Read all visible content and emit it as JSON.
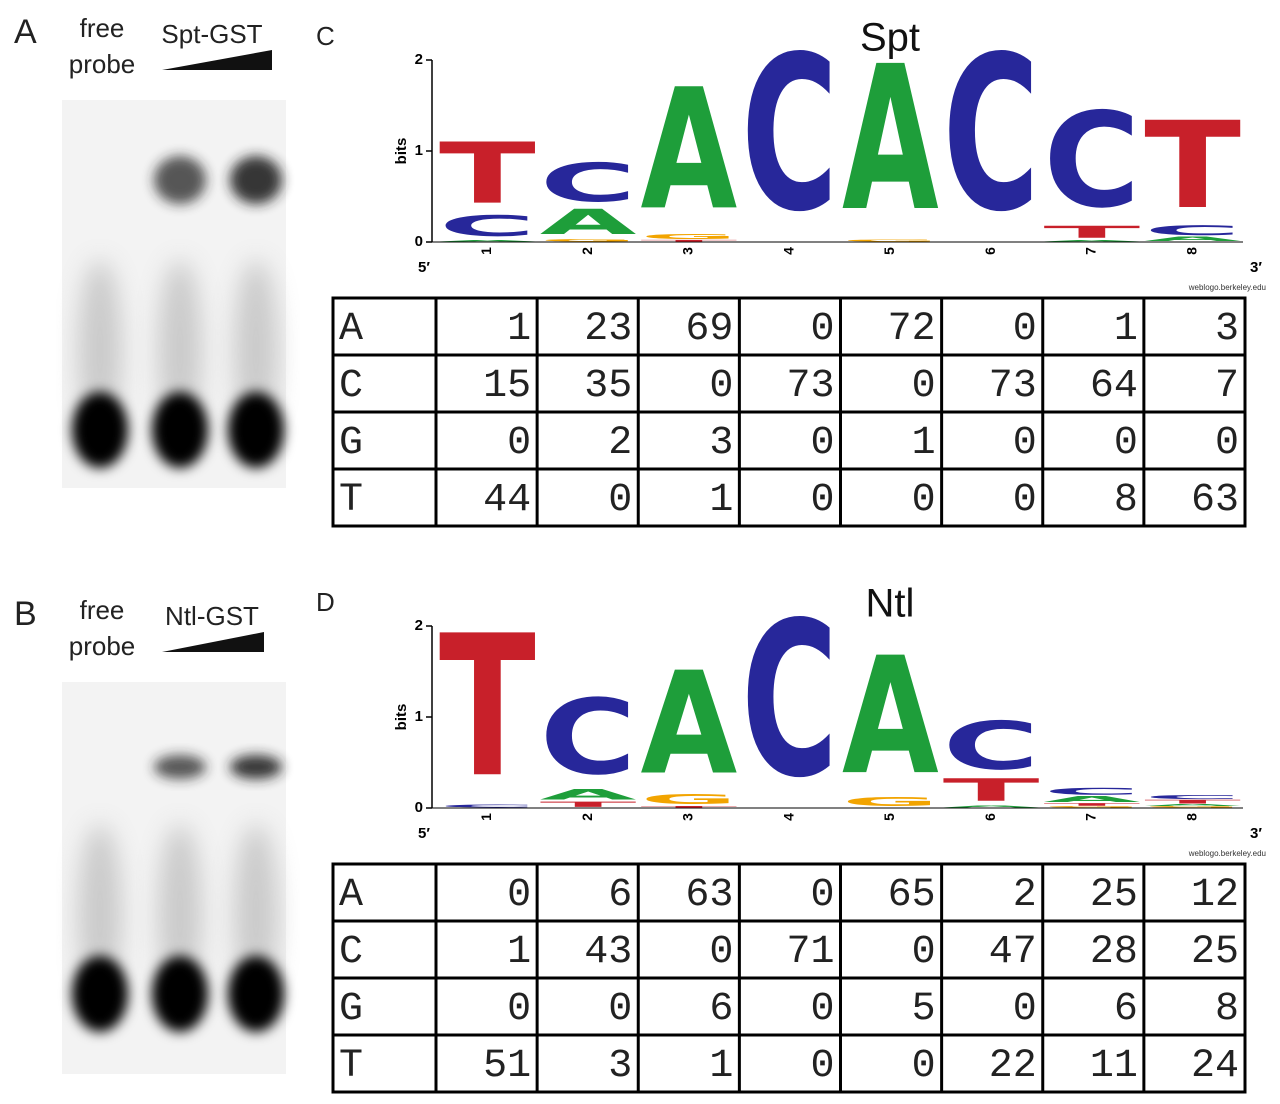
{
  "gels": [
    {
      "label": "A",
      "free_probe": [
        "free",
        "probe"
      ],
      "protein": "Spt-GST"
    },
    {
      "label": "B",
      "free_probe": [
        "free",
        "probe"
      ],
      "protein": "Ntl-GST"
    }
  ],
  "logos": [
    {
      "label": "C",
      "title": "Spt",
      "y_label": "bits",
      "ylim": [
        0,
        2
      ],
      "yticks": [
        0,
        1,
        2
      ],
      "positions": [
        1,
        2,
        3,
        4,
        5,
        6,
        7,
        8
      ],
      "five_prime": "5′",
      "three_prime": "3′",
      "credit": "weblogo.berkeley.edu",
      "table": {
        "rows": [
          {
            "base": "A",
            "counts": [
              1,
              23,
              69,
              0,
              72,
              0,
              1,
              3
            ]
          },
          {
            "base": "C",
            "counts": [
              15,
              35,
              0,
              73,
              0,
              73,
              64,
              7
            ]
          },
          {
            "base": "G",
            "counts": [
              0,
              2,
              3,
              0,
              1,
              0,
              0,
              0
            ]
          },
          {
            "base": "T",
            "counts": [
              44,
              0,
              1,
              0,
              0,
              0,
              8,
              63
            ]
          }
        ]
      }
    },
    {
      "label": "D",
      "title": "Ntl",
      "y_label": "bits",
      "ylim": [
        0,
        2
      ],
      "yticks": [
        0,
        1,
        2
      ],
      "positions": [
        1,
        2,
        3,
        4,
        5,
        6,
        7,
        8
      ],
      "five_prime": "5′",
      "three_prime": "3′",
      "credit": "weblogo.berkeley.edu",
      "table": {
        "rows": [
          {
            "base": "A",
            "counts": [
              0,
              6,
              63,
              0,
              65,
              2,
              25,
              12
            ]
          },
          {
            "base": "C",
            "counts": [
              1,
              43,
              0,
              71,
              0,
              47,
              28,
              25
            ]
          },
          {
            "base": "G",
            "counts": [
              0,
              0,
              6,
              0,
              5,
              0,
              6,
              8
            ]
          },
          {
            "base": "T",
            "counts": [
              51,
              3,
              1,
              0,
              0,
              22,
              11,
              24
            ]
          }
        ]
      }
    }
  ]
}
